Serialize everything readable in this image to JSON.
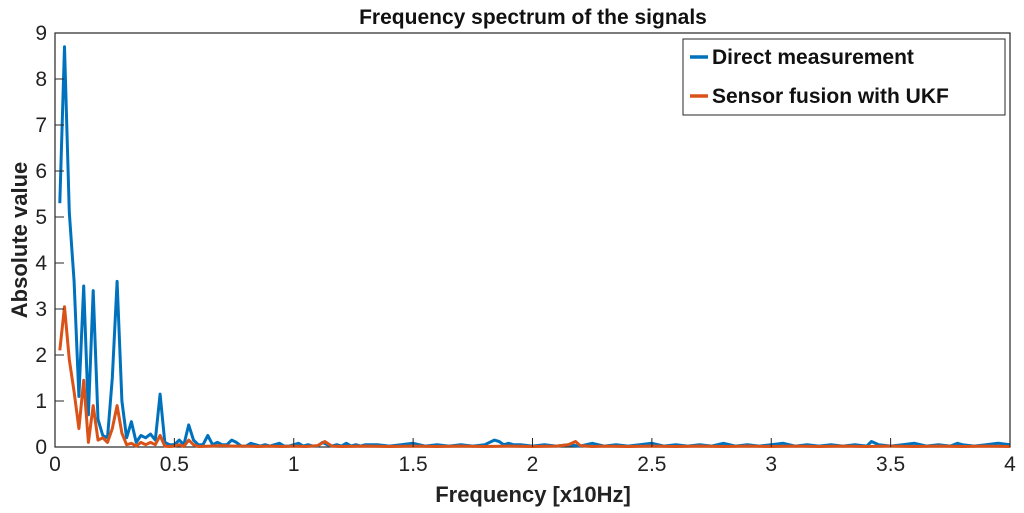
{
  "chart_data": {
    "type": "line",
    "title": "Frequency spectrum of the signals",
    "xlabel": "Frequency [x10Hz]",
    "ylabel": "Absolute value",
    "xlim": [
      0,
      4
    ],
    "ylim": [
      0,
      9
    ],
    "xticks": [
      0,
      0.5,
      1,
      1.5,
      2,
      2.5,
      3,
      3.5,
      4
    ],
    "xtick_labels": [
      "0",
      "0.5",
      "1",
      "1.5",
      "2",
      "2.5",
      "3",
      "3.5",
      "4"
    ],
    "yticks": [
      0,
      1,
      2,
      3,
      4,
      5,
      6,
      7,
      8,
      9
    ],
    "ytick_labels": [
      "0",
      "1",
      "2",
      "3",
      "4",
      "5",
      "6",
      "7",
      "8",
      "9"
    ],
    "grid": false,
    "legend_position": "top-right",
    "series": [
      {
        "name": "Direct measurement",
        "color": "#0072BD",
        "x": [
          0.02,
          0.04,
          0.06,
          0.08,
          0.1,
          0.12,
          0.14,
          0.16,
          0.18,
          0.2,
          0.22,
          0.24,
          0.26,
          0.28,
          0.3,
          0.32,
          0.34,
          0.36,
          0.38,
          0.4,
          0.42,
          0.44,
          0.46,
          0.48,
          0.5,
          0.52,
          0.54,
          0.56,
          0.58,
          0.6,
          0.62,
          0.64,
          0.66,
          0.68,
          0.7,
          0.72,
          0.74,
          0.76,
          0.78,
          0.8,
          0.82,
          0.84,
          0.86,
          0.88,
          0.9,
          0.92,
          0.94,
          0.96,
          0.98,
          1.0,
          1.02,
          1.04,
          1.06,
          1.08,
          1.1,
          1.12,
          1.14,
          1.16,
          1.18,
          1.2,
          1.22,
          1.24,
          1.26,
          1.28,
          1.3,
          1.35,
          1.4,
          1.45,
          1.5,
          1.55,
          1.6,
          1.65,
          1.7,
          1.75,
          1.8,
          1.84,
          1.86,
          1.88,
          1.9,
          1.92,
          1.95,
          2.0,
          2.05,
          2.1,
          2.15,
          2.2,
          2.25,
          2.3,
          2.35,
          2.4,
          2.45,
          2.5,
          2.55,
          2.6,
          2.65,
          2.7,
          2.75,
          2.8,
          2.85,
          2.9,
          2.95,
          3.0,
          3.05,
          3.1,
          3.15,
          3.2,
          3.25,
          3.3,
          3.35,
          3.4,
          3.42,
          3.45,
          3.5,
          3.55,
          3.6,
          3.65,
          3.7,
          3.75,
          3.78,
          3.8,
          3.85,
          3.9,
          3.95,
          4.0
        ],
        "values": [
          5.3,
          8.7,
          5.1,
          3.6,
          1.1,
          3.5,
          0.7,
          3.4,
          0.6,
          0.25,
          0.2,
          1.5,
          3.6,
          1.0,
          0.2,
          0.55,
          0.1,
          0.25,
          0.2,
          0.28,
          0.15,
          1.15,
          0.1,
          0.05,
          0.05,
          0.15,
          0.05,
          0.48,
          0.15,
          0.05,
          0.05,
          0.25,
          0.05,
          0.1,
          0.05,
          0.05,
          0.15,
          0.1,
          0.02,
          0.02,
          0.08,
          0.05,
          0.02,
          0.05,
          0.02,
          0.05,
          0.08,
          0.02,
          0.02,
          0.05,
          0.08,
          0.02,
          0.05,
          0.02,
          0.02,
          0.1,
          0.05,
          0.02,
          0.05,
          0.02,
          0.08,
          0.02,
          0.05,
          0.02,
          0.05,
          0.05,
          0.02,
          0.05,
          0.08,
          0.02,
          0.05,
          0.02,
          0.05,
          0.02,
          0.05,
          0.15,
          0.12,
          0.05,
          0.08,
          0.05,
          0.05,
          0.02,
          0.05,
          0.02,
          0.05,
          0.02,
          0.08,
          0.02,
          0.05,
          0.02,
          0.05,
          0.08,
          0.02,
          0.05,
          0.02,
          0.05,
          0.02,
          0.08,
          0.02,
          0.05,
          0.02,
          0.05,
          0.08,
          0.02,
          0.05,
          0.02,
          0.05,
          0.02,
          0.05,
          0.02,
          0.12,
          0.05,
          0.02,
          0.05,
          0.08,
          0.02,
          0.05,
          0.02,
          0.08,
          0.05,
          0.02,
          0.05,
          0.08,
          0.05
        ]
      },
      {
        "name": "Sensor fusion with UKF",
        "color": "#D95319",
        "x": [
          0.02,
          0.04,
          0.06,
          0.08,
          0.1,
          0.12,
          0.14,
          0.16,
          0.18,
          0.2,
          0.22,
          0.24,
          0.26,
          0.28,
          0.3,
          0.32,
          0.34,
          0.36,
          0.38,
          0.4,
          0.42,
          0.44,
          0.46,
          0.48,
          0.5,
          0.52,
          0.54,
          0.56,
          0.58,
          0.6,
          0.65,
          0.7,
          0.75,
          0.8,
          0.85,
          0.9,
          0.95,
          1.0,
          1.05,
          1.1,
          1.13,
          1.16,
          1.2,
          1.3,
          1.4,
          1.5,
          1.6,
          1.7,
          1.8,
          1.9,
          2.0,
          2.1,
          2.15,
          2.18,
          2.2,
          2.25,
          2.3,
          2.4,
          2.5,
          2.6,
          2.7,
          2.8,
          2.9,
          3.0,
          3.1,
          3.2,
          3.3,
          3.4,
          3.5,
          3.6,
          3.7,
          3.8,
          3.9,
          4.0
        ],
        "values": [
          2.1,
          3.05,
          1.9,
          1.2,
          0.4,
          1.45,
          0.1,
          0.9,
          0.15,
          0.2,
          0.1,
          0.4,
          0.9,
          0.3,
          0.05,
          0.08,
          0.02,
          0.1,
          0.05,
          0.1,
          0.05,
          0.25,
          0.02,
          0.01,
          0.02,
          0.05,
          0.01,
          0.15,
          0.05,
          0.01,
          0.02,
          0.03,
          0.02,
          0.02,
          0.01,
          0.02,
          0.01,
          0.02,
          0.01,
          0.03,
          0.12,
          0.02,
          0.01,
          0.02,
          0.01,
          0.02,
          0.01,
          0.02,
          0.01,
          0.02,
          0.01,
          0.02,
          0.05,
          0.12,
          0.03,
          0.01,
          0.02,
          0.01,
          0.02,
          0.01,
          0.02,
          0.01,
          0.02,
          0.01,
          0.02,
          0.01,
          0.02,
          0.01,
          0.02,
          0.01,
          0.02,
          0.01,
          0.02,
          0.01
        ]
      }
    ]
  }
}
